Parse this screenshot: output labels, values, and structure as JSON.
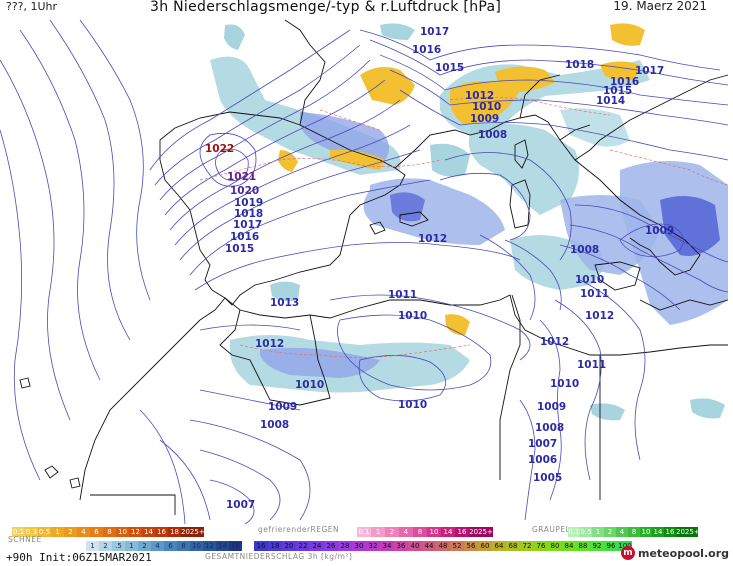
{
  "header": {
    "left": "???, 1Uhr",
    "title": "3h Niederschlagsmenge/-typ & r.Luftdruck [hPa]",
    "date": "19. Maerz 2021"
  },
  "isobar_labels": {
    "p1017a": "1017",
    "p1016a": "1016",
    "p1015a": "1015",
    "p1018a": "1018",
    "p1017b": "1017",
    "p1016b": "1016",
    "p1015b": "1015",
    "p1014a": "1014",
    "p1012a": "1012",
    "p1010a": "1010",
    "p1009a": "1009",
    "p1008a": "1008",
    "p1022": "1022",
    "p1021": "1021",
    "p1020": "1020",
    "p1019": "1019",
    "p1018b": "1018",
    "p1017c": "1017",
    "p1016c": "1016",
    "p1015c": "1015",
    "p1012b": "1012",
    "p1008b": "1008",
    "p1009b": "1009",
    "p1010b": "1010",
    "p1011a": "1011",
    "p1012c": "1012",
    "p1013": "1013",
    "p1011b": "1011",
    "p1010c": "1010",
    "p1012d": "1012",
    "p1012e": "1012",
    "p1011c": "1011",
    "p1010d": "1010",
    "p1010e": "1010",
    "p1009c": "1009",
    "p1008c": "1008",
    "p1010f": "1010",
    "p1009d": "1009",
    "p1008d": "1008",
    "p1007a": "1007",
    "p1006": "1006",
    "p1005": "1005",
    "p1007b": "1007"
  },
  "legend": {
    "rain_values": [
      "0.1",
      "0.3",
      "0.5",
      "1",
      "2",
      "4",
      "6",
      "8",
      "10",
      "12",
      "14",
      "16",
      "18",
      "2025+"
    ],
    "rain_colors": [
      "#f0d060",
      "#f3c640",
      "#f2b630",
      "#efa825",
      "#ec9a1f",
      "#e98b1a",
      "#e57d16",
      "#df6d12",
      "#d95f10",
      "#d0510e",
      "#c6440c",
      "#bb380b",
      "#ad2d09",
      "#8f2008"
    ],
    "freezing_label": "gefrierenderREGEN",
    "freezing_values": [
      "0.1",
      "1",
      "2",
      "4",
      "8",
      "10",
      "14",
      "16",
      "2025+"
    ],
    "freezing_colors": [
      "#f7b8d8",
      "#f39cc9",
      "#ee80ba",
      "#e866ab",
      "#e04c9c",
      "#d6358d",
      "#c8227e",
      "#b5136f",
      "#9c0860"
    ],
    "graupel_label": "GRAUPEL",
    "graupel_values": [
      "0.1",
      "0.5",
      "1",
      "2",
      "4",
      "8",
      "10",
      "14",
      "16",
      "2025+"
    ],
    "graupel_colors": [
      "#b8f0b8",
      "#a0e8a0",
      "#86de86",
      "#6cd46c",
      "#52c852",
      "#3cbc3c",
      "#2aae2a",
      "#1c9e1c",
      "#108c10",
      "#067806"
    ],
    "snow_label": "SCHNEE",
    "snow_values": [
      "1",
      "2",
      ".5",
      "1",
      "2",
      "4",
      "6",
      "8",
      "10",
      "12",
      "14",
      "16"
    ],
    "snow_colors": [
      "#cfe4ee",
      "#b6d6e6",
      "#9cc8de",
      "#86bad6",
      "#70aace",
      "#5a9ac6",
      "#4a88bc",
      "#3e76b0",
      "#3464a4",
      "#2c5498",
      "#24468c",
      "#1c3880"
    ],
    "total_values": [
      "16",
      "18",
      "20",
      "22",
      "24",
      "26",
      "28",
      "30",
      "32",
      "34",
      "36",
      "40",
      "44",
      "48",
      "52",
      "56",
      "60",
      "64",
      "68",
      "72",
      "76",
      "80",
      "84",
      "88",
      "92",
      "96",
      "100"
    ],
    "total_colors": [
      "#3a3acf",
      "#4a3ad8",
      "#5a3ae0",
      "#6a3ae6",
      "#7a3ae8",
      "#8a3ae6",
      "#9a3ae0",
      "#aa3ad8",
      "#b83acc",
      "#c43cbc",
      "#cc44a8",
      "#d04e94",
      "#d25a80",
      "#d2686c",
      "#d07a58",
      "#cc8c46",
      "#c49e36",
      "#bab02a",
      "#aec020",
      "#a0cc1a",
      "#90d418",
      "#80da1a",
      "#70de20",
      "#60e02a",
      "#50e036",
      "#40de44",
      "#30d854"
    ],
    "total_label": "GESAMTNIEDERSCHLAG 3h [kg/m²]"
  },
  "footer": {
    "init": "+90h Init:06Z15MAR2021",
    "logo": "meteopool.org"
  }
}
